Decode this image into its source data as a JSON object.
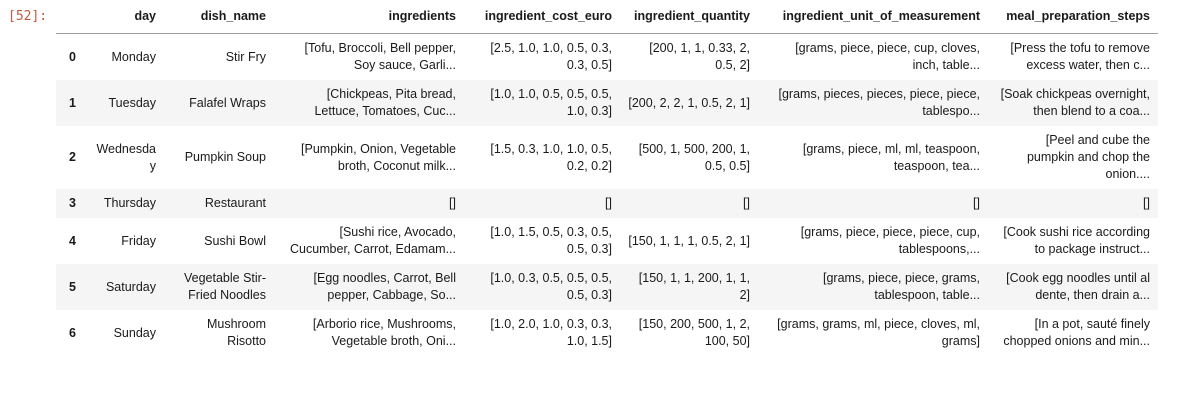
{
  "output": {
    "execution_count": "[52]:"
  },
  "colors": {
    "prompt": "#bf5b3d",
    "stripe_row_background": "#f5f5f5",
    "header_border": "#9e9e9e",
    "text": "#1a1a1a"
  },
  "table": {
    "index_header": "",
    "columns": [
      "day",
      "dish_name",
      "ingredients",
      "ingredient_cost_euro",
      "ingredient_quantity",
      "ingredient_unit_of_measurement",
      "meal_preparation_steps"
    ],
    "rows": [
      {
        "index": "0",
        "day": "Monday",
        "dish_name": "Stir Fry",
        "ingredients": "[Tofu, Broccoli, Bell pepper, Soy sauce, Garli...",
        "ingredient_cost_euro": "[2.5, 1.0, 1.0, 0.5, 0.3, 0.3, 0.5]",
        "ingredient_quantity": "[200, 1, 1, 0.33, 2, 0.5, 2]",
        "ingredient_unit_of_measurement": "[grams, piece, piece, cup, cloves, inch, table...",
        "meal_preparation_steps": "[Press the tofu to remove excess water, then c..."
      },
      {
        "index": "1",
        "day": "Tuesday",
        "dish_name": "Falafel Wraps",
        "ingredients": "[Chickpeas, Pita bread, Lettuce, Tomatoes, Cuc...",
        "ingredient_cost_euro": "[1.0, 1.0, 0.5, 0.5, 0.5, 1.0, 0.3]",
        "ingredient_quantity": "[200, 2, 2, 1, 0.5, 2, 1]",
        "ingredient_unit_of_measurement": "[grams, pieces, pieces, piece, piece, tablespo...",
        "meal_preparation_steps": "[Soak chickpeas overnight, then blend to a coa..."
      },
      {
        "index": "2",
        "day": "Wednesday",
        "dish_name": "Pumpkin Soup",
        "ingredients": "[Pumpkin, Onion, Vegetable broth, Coconut milk...",
        "ingredient_cost_euro": "[1.5, 0.3, 1.0, 1.0, 0.5, 0.2, 0.2]",
        "ingredient_quantity": "[500, 1, 500, 200, 1, 0.5, 0.5]",
        "ingredient_unit_of_measurement": "[grams, piece, ml, ml, teaspoon, teaspoon, tea...",
        "meal_preparation_steps": "[Peel and cube the pumpkin and chop the onion...."
      },
      {
        "index": "3",
        "day": "Thursday",
        "dish_name": "Restaurant",
        "ingredients": "[]",
        "ingredient_cost_euro": "[]",
        "ingredient_quantity": "[]",
        "ingredient_unit_of_measurement": "[]",
        "meal_preparation_steps": "[]"
      },
      {
        "index": "4",
        "day": "Friday",
        "dish_name": "Sushi Bowl",
        "ingredients": "[Sushi rice, Avocado, Cucumber, Carrot, Edamam...",
        "ingredient_cost_euro": "[1.0, 1.5, 0.5, 0.3, 0.5, 0.5, 0.3]",
        "ingredient_quantity": "[150, 1, 1, 1, 0.5, 2, 1]",
        "ingredient_unit_of_measurement": "[grams, piece, piece, piece, cup, tablespoons,...",
        "meal_preparation_steps": "[Cook sushi rice according to package instruct..."
      },
      {
        "index": "5",
        "day": "Saturday",
        "dish_name": "Vegetable Stir-Fried Noodles",
        "ingredients": "[Egg noodles, Carrot, Bell pepper, Cabbage, So...",
        "ingredient_cost_euro": "[1.0, 0.3, 0.5, 0.5, 0.5, 0.5, 0.3]",
        "ingredient_quantity": "[150, 1, 1, 200, 1, 1, 2]",
        "ingredient_unit_of_measurement": "[grams, piece, piece, grams, tablespoon, table...",
        "meal_preparation_steps": "[Cook egg noodles until al dente, then drain a..."
      },
      {
        "index": "6",
        "day": "Sunday",
        "dish_name": "Mushroom Risotto",
        "ingredients": "[Arborio rice, Mushrooms, Vegetable broth, Oni...",
        "ingredient_cost_euro": "[1.0, 2.0, 1.0, 0.3, 0.3, 1.0, 1.5]",
        "ingredient_quantity": "[150, 200, 500, 1, 2, 100, 50]",
        "ingredient_unit_of_measurement": "[grams, grams, ml, piece, cloves, ml, grams]",
        "meal_preparation_steps": "[In a pot, sauté finely chopped onions and min..."
      }
    ]
  }
}
